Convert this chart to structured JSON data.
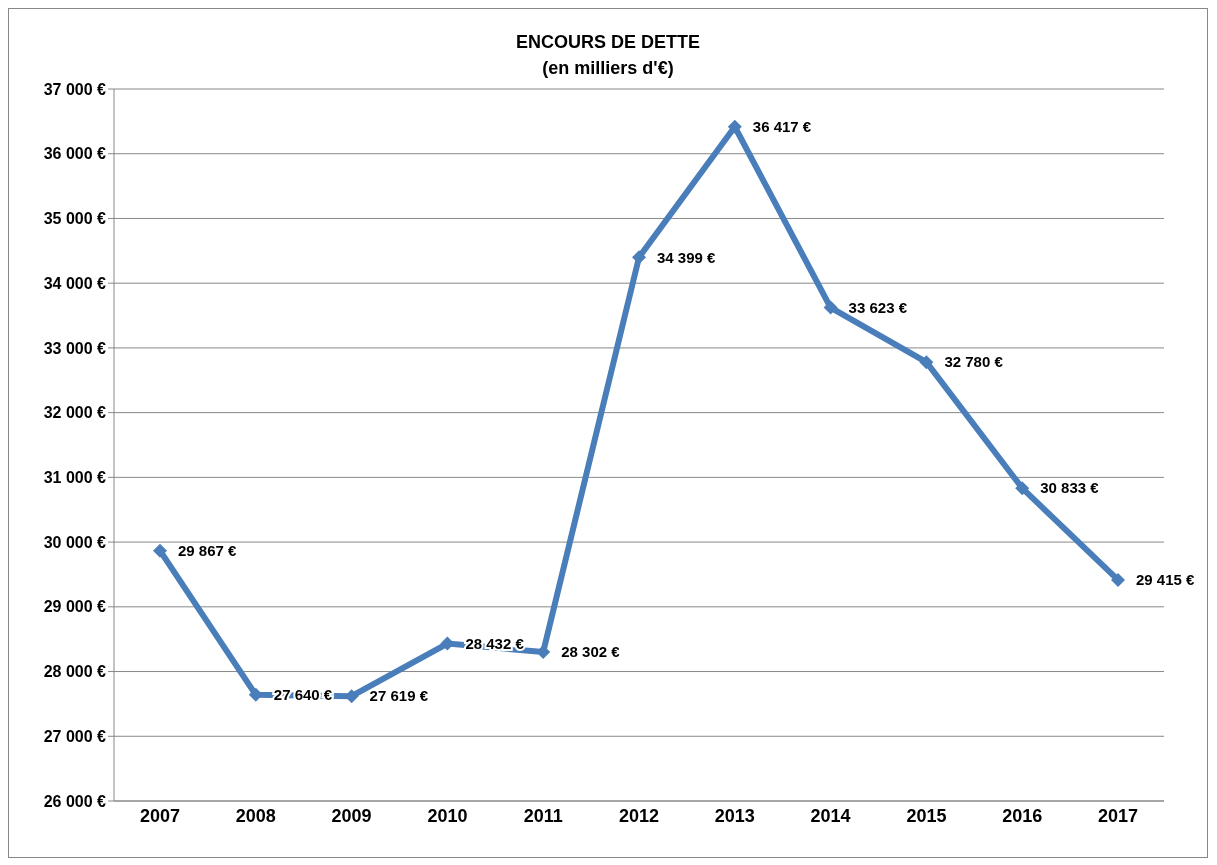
{
  "chart_data": {
    "type": "line",
    "title": "ENCOURS DE DETTE",
    "subtitle": "(en milliers d'€)",
    "categories": [
      "2007",
      "2008",
      "2009",
      "2010",
      "2011",
      "2012",
      "2013",
      "2014",
      "2015",
      "2016",
      "2017"
    ],
    "series": [
      {
        "color": "#4a7ebb",
        "values": [
          29867,
          27640,
          27619,
          28432,
          28302,
          34399,
          36417,
          33623,
          32780,
          30833,
          29415
        ],
        "value_labels": [
          "29 867 €",
          "27 640 €",
          "27 619 €",
          "28 432 €",
          "28 302 €",
          "34 399 €",
          "36 417 €",
          "33 623 €",
          "32 780 €",
          "30 833 €",
          "29 415 €"
        ]
      }
    ],
    "ylim": [
      26000,
      37000
    ],
    "yticks": [
      {
        "value": 26000,
        "label": "26 000 €"
      },
      {
        "value": 27000,
        "label": "27 000 €"
      },
      {
        "value": 28000,
        "label": "28 000 €"
      },
      {
        "value": 29000,
        "label": "29 000 €"
      },
      {
        "value": 30000,
        "label": "30 000 €"
      },
      {
        "value": 31000,
        "label": "31 000 €"
      },
      {
        "value": 32000,
        "label": "32 000 €"
      },
      {
        "value": 33000,
        "label": "33 000 €"
      },
      {
        "value": 34000,
        "label": "34 000 €"
      },
      {
        "value": 35000,
        "label": "35 000 €"
      },
      {
        "value": 36000,
        "label": "36 000 €"
      },
      {
        "value": 37000,
        "label": "37 000 €"
      }
    ],
    "grid": "y",
    "legend": false,
    "marker": "diamond",
    "line_style": "solid"
  }
}
